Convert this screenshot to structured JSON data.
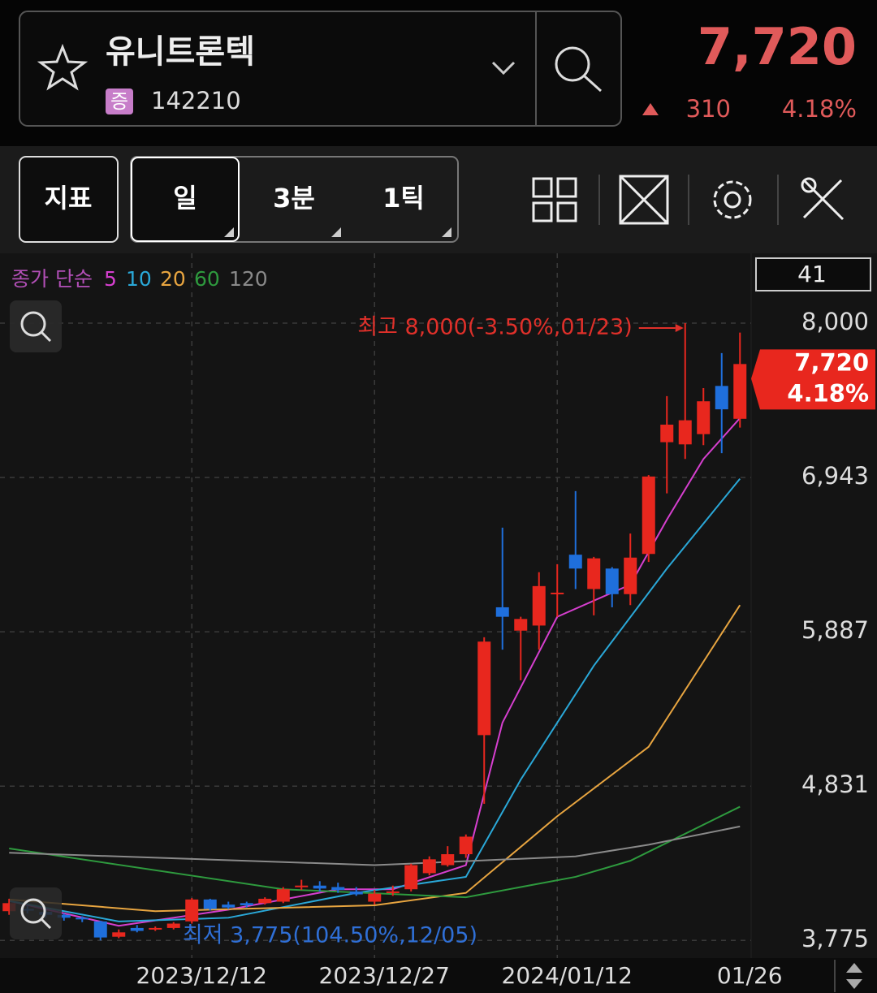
{
  "header": {
    "name": "유니트론텍",
    "badge": "증",
    "code": "142210",
    "price": "7,720",
    "change": "310",
    "change_pct": "4.18%"
  },
  "toolbar": {
    "indicator": "지표",
    "periods": [
      "일",
      "3분",
      "1틱"
    ]
  },
  "chart_data": {
    "type": "candlestick",
    "panel_value": "41",
    "legend_label": "종가 단순",
    "categories": [
      null,
      null,
      null,
      null,
      null,
      null,
      null,
      null,
      null,
      null,
      "2023/12/12",
      null,
      null,
      null,
      null,
      null,
      null,
      null,
      null,
      null,
      "2023/12/27",
      null,
      null,
      null,
      null,
      null,
      null,
      null,
      null,
      null,
      "2024/01/12",
      null,
      null,
      null,
      null,
      null,
      null,
      null,
      null,
      null,
      "01/26"
    ],
    "open": [
      3975,
      3990,
      3970,
      3950,
      3930,
      3905,
      3800,
      3860,
      3850,
      3860,
      3905,
      4055,
      4020,
      4030,
      4030,
      4040,
      4140,
      4150,
      4140,
      4110,
      4040,
      4100,
      4125,
      4235,
      4290,
      4365,
      5180,
      6055,
      5895,
      5930,
      6150,
      6415,
      6180,
      6320,
      6145,
      6420,
      7185,
      7170,
      7240,
      7570,
      7345
    ],
    "high": [
      4060,
      4010,
      3990,
      3960,
      3940,
      3910,
      3850,
      3880,
      3870,
      3900,
      4065,
      4060,
      4040,
      4040,
      4070,
      4140,
      4190,
      4180,
      4170,
      4140,
      4120,
      4150,
      4300,
      4350,
      4420,
      4500,
      5850,
      6600,
      5990,
      6295,
      6350,
      6850,
      6400,
      6330,
      6560,
      6960,
      7500,
      8000,
      7555,
      7795,
      7935
    ],
    "low": [
      3950,
      3960,
      3930,
      3910,
      3900,
      3775,
      3790,
      3830,
      3840,
      3850,
      3890,
      3980,
      3990,
      4000,
      4020,
      4030,
      4120,
      4110,
      4100,
      4080,
      4020,
      4080,
      4110,
      4220,
      4280,
      4340,
      4710,
      5765,
      5555,
      5765,
      5990,
      6180,
      6000,
      6055,
      6070,
      6365,
      6835,
      7070,
      7165,
      7110,
      7285
    ],
    "close": [
      4030,
      3980,
      3950,
      3930,
      3920,
      3795,
      3830,
      3840,
      3860,
      3890,
      4055,
      3990,
      4000,
      4015,
      4060,
      4125,
      4150,
      4130,
      4120,
      4090,
      4095,
      4110,
      4290,
      4330,
      4365,
      4485,
      5820,
      5990,
      5975,
      6200,
      6155,
      6320,
      6390,
      6145,
      6395,
      6950,
      7305,
      7335,
      7465,
      7410,
      7720
    ],
    "up_color": "#e8271e",
    "down_color": "#1f6fdc",
    "moving_averages": [
      {
        "name": "5",
        "color": "#d63fcf",
        "x": [
          0,
          6,
          12,
          18,
          21,
          25,
          27,
          30,
          34,
          36,
          38,
          40
        ],
        "values": [
          4045,
          3875,
          3985,
          4125,
          4125,
          4290,
          5265,
          5990,
          6210,
          6655,
          7070,
          7350
        ]
      },
      {
        "name": "10",
        "color": "#2aa8d8",
        "x": [
          0,
          6,
          12,
          19,
          25,
          28,
          32,
          36,
          40
        ],
        "values": [
          4045,
          3905,
          3930,
          4100,
          4210,
          4875,
          5655,
          6320,
          6935
        ]
      },
      {
        "name": "20",
        "color": "#e8a540",
        "x": [
          0,
          8,
          20,
          25,
          30,
          35,
          40
        ],
        "values": [
          4055,
          3975,
          4015,
          4100,
          4625,
          5100,
          6070
        ]
      },
      {
        "name": "60",
        "color": "#2e9a3e",
        "x": [
          0,
          15,
          25,
          31,
          34,
          40
        ],
        "values": [
          4404,
          4125,
          4070,
          4210,
          4320,
          4690
        ]
      },
      {
        "name": "120",
        "color": "#8a8a8a",
        "x": [
          0,
          20,
          31,
          35,
          40
        ],
        "values": [
          4375,
          4290,
          4350,
          4430,
          4555
        ]
      }
    ],
    "ylim": [
      3665,
      8461
    ],
    "yticks": [
      {
        "value": 3775,
        "label": "3,775"
      },
      {
        "value": 4831,
        "label": "4,831"
      },
      {
        "value": 5887,
        "label": "5,887"
      },
      {
        "value": 6943,
        "label": "6,943"
      },
      {
        "value": 8000,
        "label": "8,000"
      }
    ],
    "grid": true,
    "last_price": {
      "value": 7720,
      "label": "7,720",
      "change_label": "4.18%"
    },
    "annotations": {
      "high": "최고 8,000(-3.50%,01/23)",
      "low": "최저 3,775(104.50%,12/05)"
    }
  }
}
